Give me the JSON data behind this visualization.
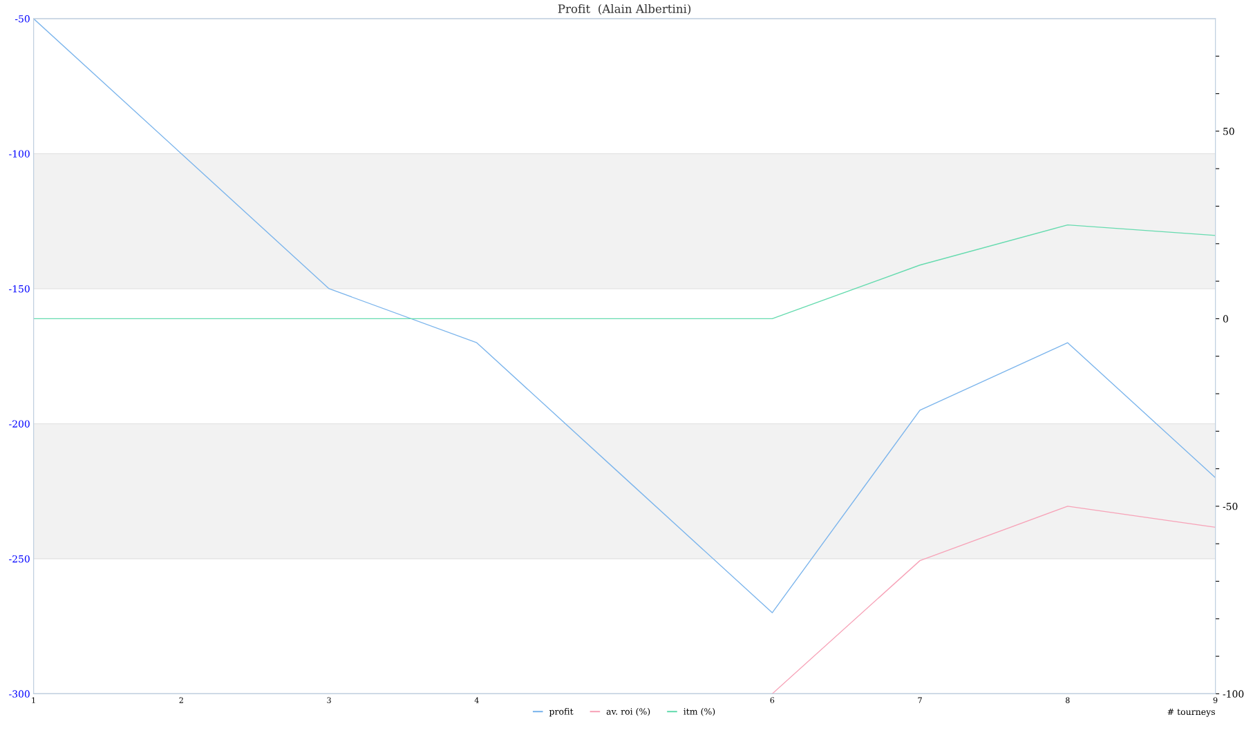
{
  "chart_data": {
    "type": "line",
    "title": "Profit  (Alain Albertini)",
    "xlabel": "# tourneys",
    "x": [
      1,
      2,
      3,
      4,
      5,
      6,
      7,
      8,
      9
    ],
    "series": [
      {
        "name": "profit",
        "color": "#7cb5ec",
        "values": [
          -50,
          -100,
          -150,
          -170,
          -220,
          -270,
          -195,
          -170,
          -220
        ]
      },
      {
        "name": "av. roi (%)",
        "color": "#f7a3b8",
        "axis": "y2",
        "values": [
          null,
          null,
          null,
          null,
          null,
          -100,
          -64.5,
          -50,
          -55.6
        ]
      },
      {
        "name": "itm (%)",
        "color": "#66dbaf",
        "axis": "y2",
        "values": [
          0,
          0,
          0,
          0,
          0,
          0,
          14.3,
          25,
          22.2
        ]
      }
    ],
    "xlim": [
      1,
      9
    ],
    "xticks": [
      1,
      2,
      3,
      4,
      6,
      7,
      8,
      9
    ],
    "ylim": [
      -300,
      -50
    ],
    "yticks": [
      -300,
      -250,
      -200,
      -150,
      -100,
      -50
    ],
    "y2lim": [
      -100,
      80
    ],
    "y2ticks": [
      -100,
      {
        "value": -90,
        "label": null
      },
      {
        "value": -80,
        "label": null
      },
      {
        "value": -70,
        "label": null
      },
      {
        "value": -60,
        "label": null
      },
      -50,
      {
        "value": -40,
        "label": null
      },
      {
        "value": -30,
        "label": null
      },
      {
        "value": -20,
        "label": null
      },
      {
        "value": -10,
        "label": null
      },
      0,
      {
        "value": 10,
        "label": null
      },
      {
        "value": 20,
        "label": null
      },
      {
        "value": 30,
        "label": null
      },
      {
        "value": 40,
        "label": null
      },
      50,
      {
        "value": 60,
        "label": null
      },
      {
        "value": 70,
        "label": null
      }
    ],
    "bands": [
      {
        "axis": "y",
        "from": -150,
        "to": -100,
        "color": "#f2f2f2"
      },
      {
        "axis": "y",
        "from": -250,
        "to": -200,
        "color": "#f2f2f2"
      }
    ],
    "grid": "y",
    "legend": "bottom",
    "marker": "none",
    "line_style": "solid"
  }
}
